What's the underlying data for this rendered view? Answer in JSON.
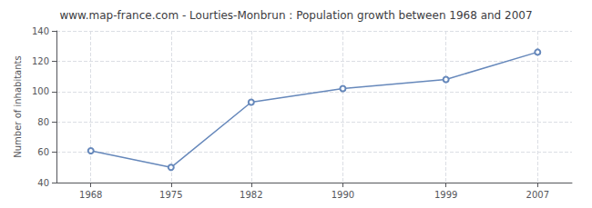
{
  "chart_data": {
    "type": "line",
    "title": "www.map-france.com - Lourties-Monbrun : Population growth between 1968 and 2007",
    "x": [
      1968,
      1975,
      1982,
      1990,
      1999,
      2007
    ],
    "values": [
      61,
      50,
      93,
      102,
      108,
      126
    ],
    "ylabel": "Number of inhabitants",
    "xlim": [
      1965,
      2010
    ],
    "xticks": [
      1968,
      1975,
      1982,
      1990,
      1999,
      2007
    ],
    "ylim": [
      40,
      140
    ],
    "yticks": [
      40,
      60,
      80,
      100,
      120,
      140
    ],
    "color": "#6688bb",
    "marker": "circle",
    "grid": true
  }
}
